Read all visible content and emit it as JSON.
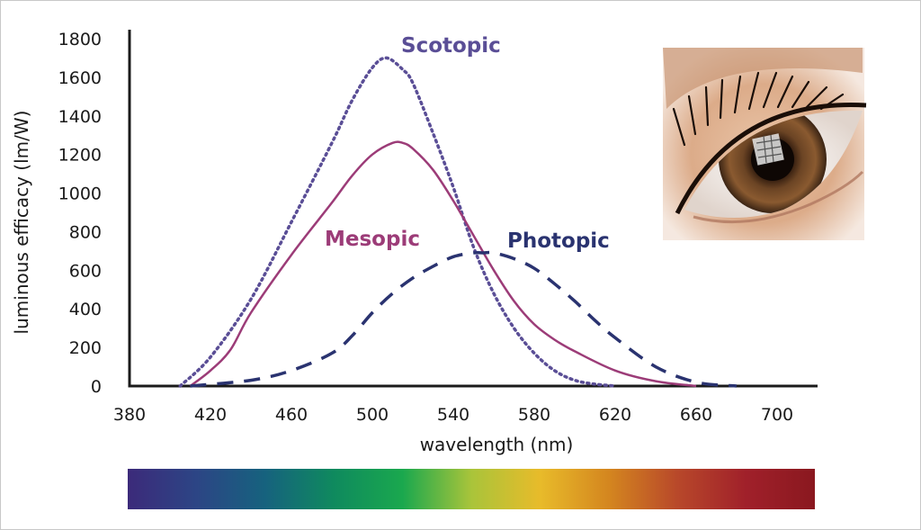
{
  "chart_data": {
    "type": "line",
    "title": "",
    "xlabel": "wavelength (nm)",
    "ylabel": "luminous efficacy (lm/W)",
    "xlim": [
      380,
      720
    ],
    "ylim": [
      0,
      1800
    ],
    "xticks": [
      380,
      420,
      460,
      500,
      540,
      580,
      620,
      660,
      700
    ],
    "yticks": [
      0,
      200,
      400,
      600,
      800,
      1000,
      1200,
      1400,
      1600,
      1800
    ],
    "grid": false,
    "legend": "inline labels",
    "series": [
      {
        "name": "Scotopic",
        "color": "#5a4e96",
        "style": "dotted",
        "x": [
          405,
          420,
          440,
          460,
          480,
          490,
          500,
          507,
          515,
          520,
          530,
          540,
          550,
          560,
          570,
          580,
          590,
          600,
          610,
          620
        ],
        "y": [
          0,
          150,
          450,
          850,
          1260,
          1480,
          1650,
          1700,
          1640,
          1570,
          1310,
          1030,
          720,
          480,
          300,
          170,
          80,
          30,
          10,
          0
        ]
      },
      {
        "name": "Mesopic",
        "color": "#9c3c78",
        "style": "solid",
        "x": [
          410,
          420,
          430,
          440,
          460,
          480,
          490,
          500,
          510,
          515,
          520,
          530,
          540,
          550,
          560,
          570,
          580,
          590,
          600,
          620,
          640,
          660
        ],
        "y": [
          0,
          80,
          190,
          380,
          680,
          950,
          1090,
          1200,
          1260,
          1260,
          1230,
          1120,
          960,
          780,
          600,
          440,
          320,
          240,
          180,
          80,
          25,
          0
        ]
      },
      {
        "name": "Photopic",
        "color": "#2a3370",
        "style": "dashed",
        "x": [
          410,
          440,
          460,
          480,
          490,
          500,
          510,
          520,
          530,
          540,
          550,
          555,
          560,
          570,
          580,
          590,
          600,
          610,
          620,
          640,
          660,
          680
        ],
        "y": [
          0,
          30,
          80,
          170,
          260,
          380,
          480,
          560,
          620,
          670,
          690,
          690,
          690,
          660,
          610,
          530,
          440,
          340,
          250,
          100,
          20,
          0
        ]
      }
    ],
    "spectrum_colors": [
      "#3c2a7a",
      "#2c4585",
      "#16627e",
      "#0f8a5e",
      "#1aa84e",
      "#a9c43a",
      "#e8bb2a",
      "#d4861f",
      "#b8482a",
      "#a0202a",
      "#8a181f"
    ],
    "decorative_image": "eye-photo"
  }
}
